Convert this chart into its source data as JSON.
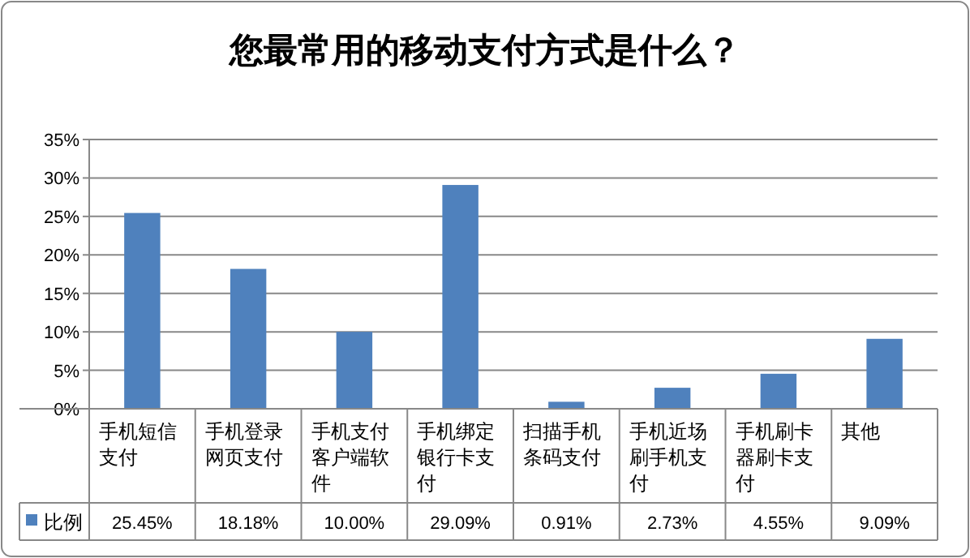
{
  "chart_data": {
    "type": "bar",
    "title": "您最常用的移动支付方式是什么？",
    "categories": [
      "手机短信支付",
      "手机登录网页支付",
      "手机支付客户端软件",
      "手机绑定银行卡支付",
      "扫描手机条码支付",
      "手机近场刷手机支付",
      "手机刷卡器刷卡支付",
      "其他"
    ],
    "series": [
      {
        "name": "比例",
        "color": "#4f81bd",
        "values": [
          25.45,
          18.18,
          10.0,
          29.09,
          0.91,
          2.73,
          4.55,
          9.09
        ],
        "value_labels": [
          "25.45%",
          "18.18%",
          "10.00%",
          "29.09%",
          "0.91%",
          "2.73%",
          "4.55%",
          "9.09%"
        ]
      }
    ],
    "ylim": [
      0,
      35
    ],
    "yticks": [
      {
        "value": 0,
        "label": "0%"
      },
      {
        "value": 5,
        "label": "5%"
      },
      {
        "value": 10,
        "label": "10%"
      },
      {
        "value": 15,
        "label": "15%"
      },
      {
        "value": 20,
        "label": "20%"
      },
      {
        "value": 25,
        "label": "25%"
      },
      {
        "value": 30,
        "label": "30%"
      },
      {
        "value": 35,
        "label": "35%"
      }
    ],
    "grid": "y",
    "legend": "bottom"
  }
}
